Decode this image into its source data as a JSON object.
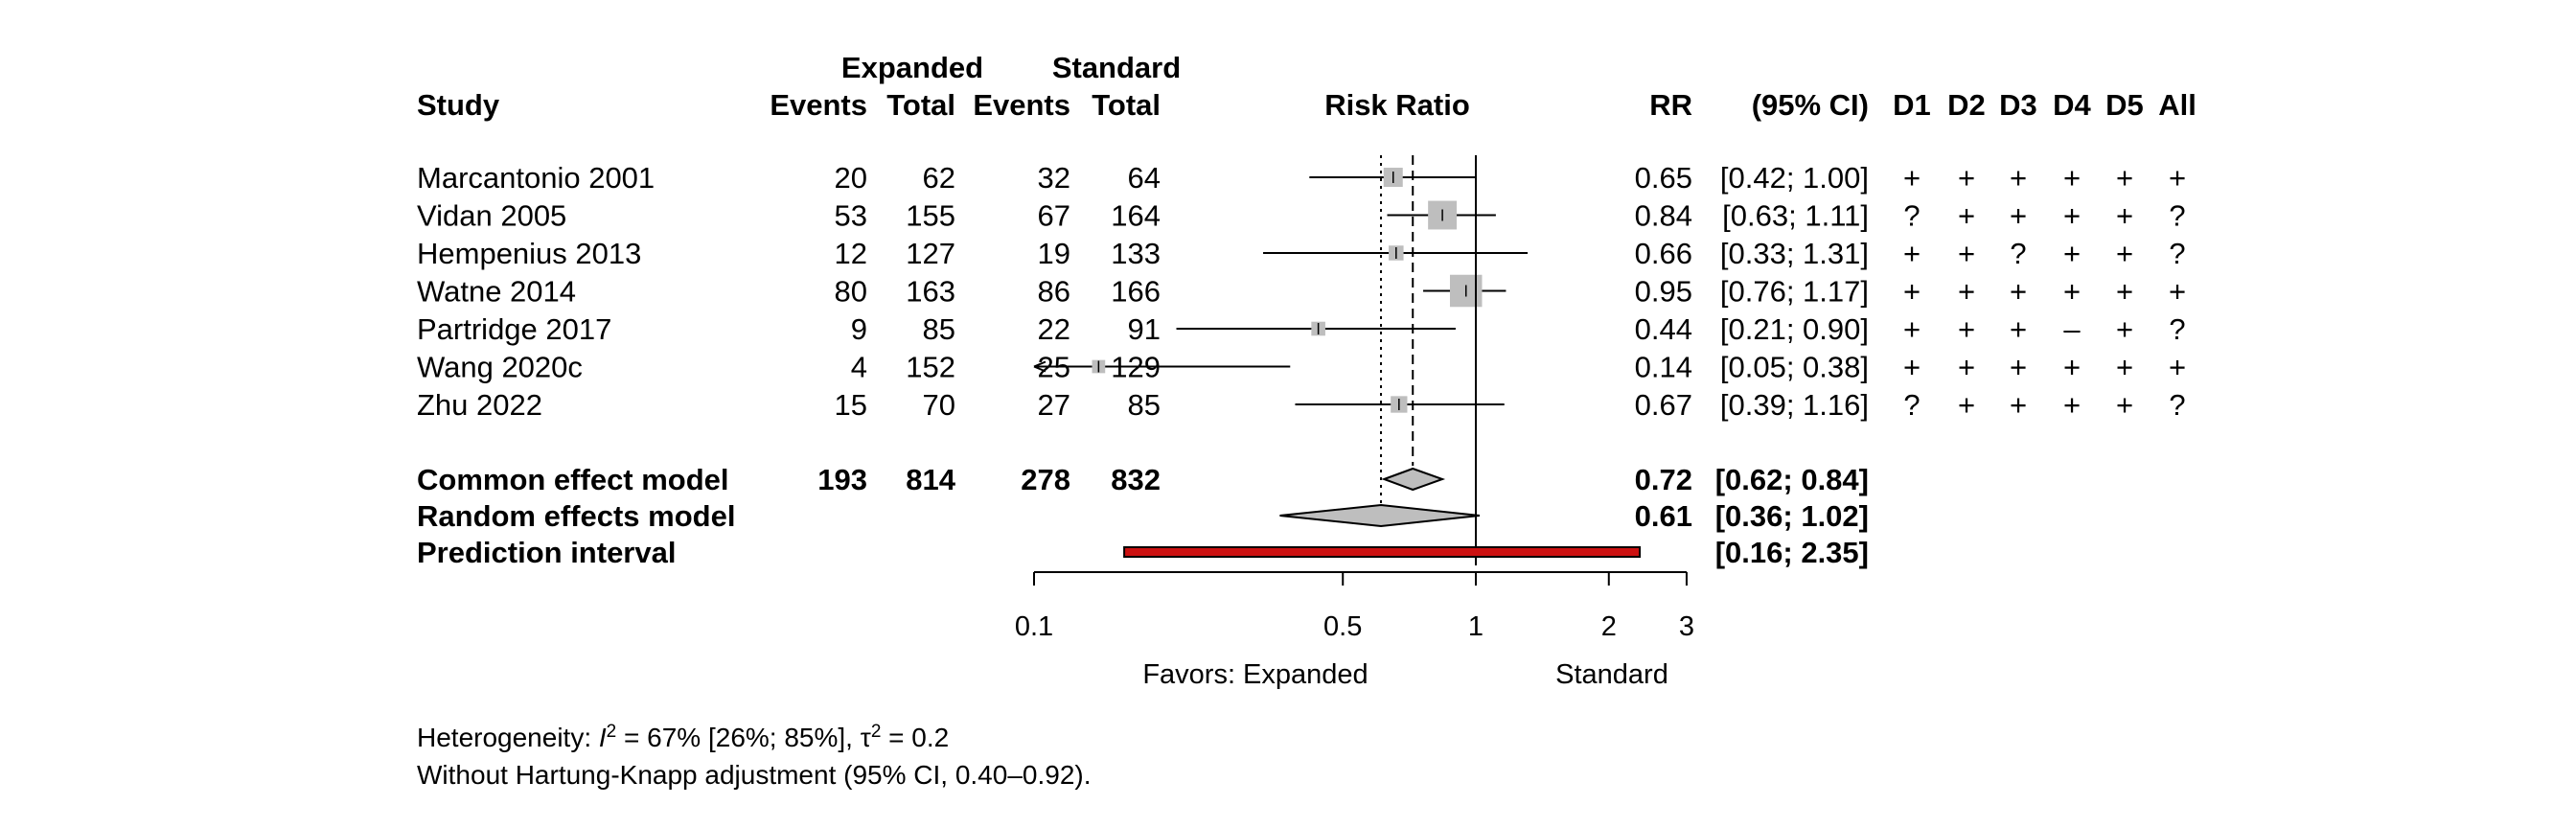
{
  "chart_data": {
    "type": "forest",
    "x_scale": "log",
    "x_ticks": [
      0.1,
      0.5,
      1,
      2,
      3
    ],
    "x_tick_labels": [
      "0.1",
      "0.5",
      "1",
      "2",
      "3"
    ],
    "x_range": [
      0.1,
      3
    ],
    "reference_line": 1,
    "grid": false,
    "headers": {
      "study": "Study",
      "group1": "Expanded",
      "group2": "Standard",
      "events": "Events",
      "total": "Total",
      "plot": "Risk Ratio",
      "rr": "RR",
      "ci": "(95% CI)",
      "rob": [
        "D1",
        "D2",
        "D3",
        "D4",
        "D5",
        "All"
      ]
    },
    "studies": [
      {
        "name": "Marcantonio 2001",
        "e_events": "20",
        "e_total": "62",
        "s_events": "32",
        "s_total": "64",
        "rr": 0.65,
        "lo": 0.42,
        "hi": 1.0,
        "rr_text": "0.65",
        "ci_text": "[0.42; 1.00]",
        "weight": 1.0,
        "rob": [
          "+",
          "+",
          "+",
          "+",
          "+",
          "+"
        ]
      },
      {
        "name": "Vidan 2005",
        "e_events": "53",
        "e_total": "155",
        "s_events": "67",
        "s_total": "164",
        "rr": 0.84,
        "lo": 0.63,
        "hi": 1.11,
        "rr_text": "0.84",
        "ci_text": "[0.63; 1.11]",
        "weight": 1.55,
        "rob": [
          "?",
          "+",
          "+",
          "+",
          "+",
          "?"
        ]
      },
      {
        "name": "Hempenius 2013",
        "e_events": "12",
        "e_total": "127",
        "s_events": "19",
        "s_total": "133",
        "rr": 0.66,
        "lo": 0.33,
        "hi": 1.31,
        "rr_text": "0.66",
        "ci_text": "[0.33; 1.31]",
        "weight": 0.75,
        "rob": [
          "+",
          "+",
          "?",
          "+",
          "+",
          "?"
        ]
      },
      {
        "name": "Watne 2014",
        "e_events": "80",
        "e_total": "163",
        "s_events": "86",
        "s_total": "166",
        "rr": 0.95,
        "lo": 0.76,
        "hi": 1.17,
        "rr_text": "0.95",
        "ci_text": "[0.76; 1.17]",
        "weight": 1.75,
        "rob": [
          "+",
          "+",
          "+",
          "+",
          "+",
          "+"
        ]
      },
      {
        "name": "Partridge 2017",
        "e_events": "9",
        "e_total": "85",
        "s_events": "22",
        "s_total": "91",
        "rr": 0.44,
        "lo": 0.21,
        "hi": 0.9,
        "rr_text": "0.44",
        "ci_text": "[0.21; 0.90]",
        "weight": 0.7,
        "rob": [
          "+",
          "+",
          "+",
          "–",
          "+",
          "?"
        ]
      },
      {
        "name": "Wang 2020c",
        "e_events": "4",
        "e_total": "152",
        "s_events": "25",
        "s_total": "129",
        "rr": 0.14,
        "lo": 0.05,
        "hi": 0.38,
        "rr_text": "0.14",
        "ci_text": "[0.05; 0.38]",
        "weight": 0.65,
        "rob": [
          "+",
          "+",
          "+",
          "+",
          "+",
          "+"
        ]
      },
      {
        "name": "Zhu 2022",
        "e_events": "15",
        "e_total": "70",
        "s_events": "27",
        "s_total": "85",
        "rr": 0.67,
        "lo": 0.39,
        "hi": 1.16,
        "rr_text": "0.67",
        "ci_text": "[0.39; 1.16]",
        "weight": 0.85,
        "rob": [
          "?",
          "+",
          "+",
          "+",
          "+",
          "?"
        ]
      }
    ],
    "common": {
      "name": "Common effect model",
      "e_events": "193",
      "e_total": "814",
      "s_events": "278",
      "s_total": "832",
      "rr": 0.72,
      "lo": 0.62,
      "hi": 0.84,
      "rr_text": "0.72",
      "ci_text": "[0.62; 0.84]"
    },
    "random": {
      "name": "Random effects model",
      "rr": 0.61,
      "lo": 0.36,
      "hi": 1.02,
      "rr_text": "0.61",
      "ci_text": "[0.36; 1.02]"
    },
    "prediction": {
      "name": "Prediction interval",
      "lo": 0.16,
      "hi": 2.35,
      "ci_text": "[0.16; 2.35]"
    },
    "xlabel_left": "Favors: Expanded",
    "xlabel_right": "Standard",
    "heterogeneity": {
      "prefix": "Heterogeneity: ",
      "i_symbol": "I",
      "i_sup": "2",
      "i_rest": " = 67% [26%; 85%], ",
      "tau_symbol": "τ",
      "tau_sup": "2",
      "tau_rest": " = 0.2"
    },
    "footnote": "Without Hartung-Knapp adjustment (95% CI, 0.40–0.92).",
    "colors": {
      "square": "#bebebe",
      "diamond": "#bebebe",
      "prediction_fill": "#cc1111",
      "line": "#000000"
    }
  }
}
